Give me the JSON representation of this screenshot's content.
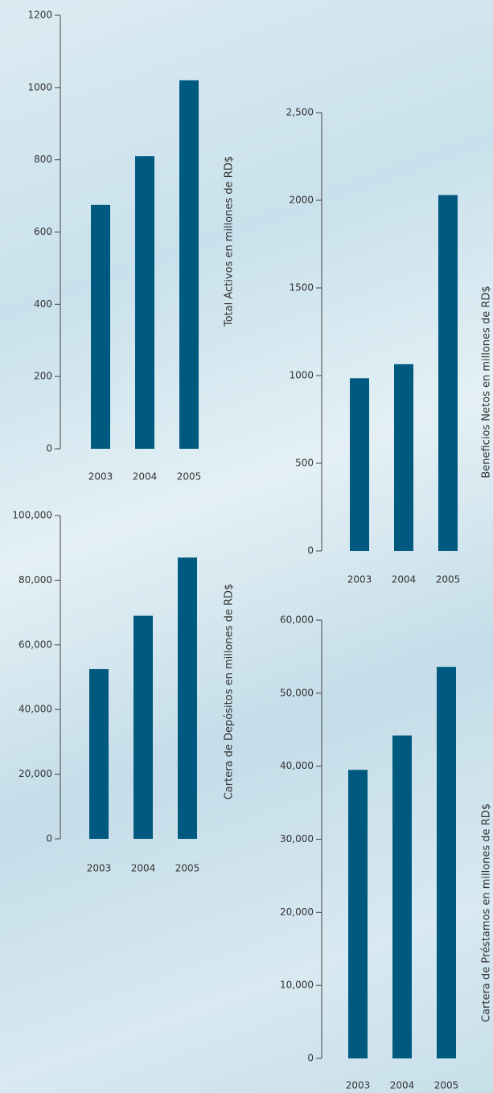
{
  "chart_data": [
    {
      "type": "bar",
      "y_label": "Total Activos en millones de RD$",
      "categories": [
        "2003",
        "2004",
        "2005"
      ],
      "values": [
        675,
        810,
        1020
      ],
      "color": "#005a80",
      "ylim": [
        0,
        1200
      ],
      "yticks": [
        0,
        200,
        400,
        600,
        800,
        1000,
        1200
      ]
    },
    {
      "type": "bar",
      "y_label": "Beneficios Netos en millones de RD$",
      "categories": [
        "2003",
        "2004",
        "2005"
      ],
      "values": [
        985,
        1065,
        2030
      ],
      "color": "#005a80",
      "ylim": [
        0,
        2500
      ],
      "yticks": [
        0,
        500,
        1000,
        1500,
        2000,
        {
          "value": 2500,
          "label": "2,500"
        }
      ]
    },
    {
      "type": "bar",
      "y_label": "Cartera de Depósitos en millones de RD$",
      "categories": [
        "2003",
        "2004",
        "2005"
      ],
      "values": [
        52500,
        69000,
        87000
      ],
      "color": "#005a80",
      "ylim": [
        0,
        100000
      ],
      "yticks": [
        0,
        {
          "value": 20000,
          "label": "20,000"
        },
        {
          "value": 40000,
          "label": "40,000"
        },
        {
          "value": 60000,
          "label": "60,000"
        },
        {
          "value": 80000,
          "label": "80,000"
        },
        {
          "value": 100000,
          "label": "100,000"
        }
      ]
    },
    {
      "type": "bar",
      "y_label": "Cartera de Préstamos en millones de RD$",
      "categories": [
        "2003",
        "2004",
        "2005"
      ],
      "values": [
        39500,
        44200,
        53600
      ],
      "color": "#005a80",
      "ylim": [
        0,
        60000
      ],
      "yticks": [
        0,
        {
          "value": 10000,
          "label": "10,000"
        },
        {
          "value": 20000,
          "label": "20,000"
        },
        {
          "value": 30000,
          "label": "30,000"
        },
        {
          "value": 40000,
          "label": "40,000"
        },
        {
          "value": 50000,
          "label": "50,000"
        },
        {
          "value": 60000,
          "label": "60,000"
        }
      ]
    }
  ]
}
